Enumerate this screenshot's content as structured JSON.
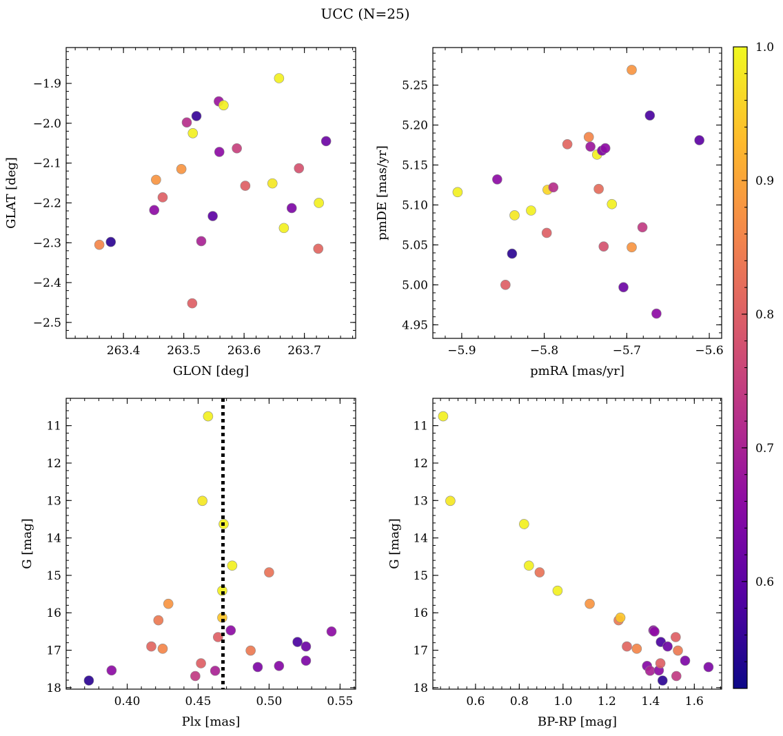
{
  "figure": {
    "title": "UCC (N=25)"
  },
  "colorbar": {
    "min": 0.52,
    "max": 1.0,
    "ticks": [
      0.6,
      0.7,
      0.8,
      0.9,
      1.0
    ],
    "tick_labels": [
      "0.6",
      "0.7",
      "0.8",
      "0.9",
      "1.0"
    ],
    "colormap": "plasma"
  },
  "chart_data": [
    {
      "type": "scatter",
      "xlabel": "GLON [deg]",
      "ylabel": "GLAT [deg]",
      "xlim": [
        263.305,
        263.785
      ],
      "ylim": [
        -2.54,
        -1.81
      ],
      "x_inverted": false,
      "y_inverted": false,
      "xticks": [
        263.4,
        263.5,
        263.6,
        263.7
      ],
      "xtick_labels": [
        "263.4",
        "263.5",
        "263.6",
        "263.7"
      ],
      "yticks": [
        -1.9,
        -2.0,
        -2.1,
        -2.2,
        -2.3,
        -2.4,
        -2.5
      ],
      "ytick_labels": [
        "−1.9",
        "−2.0",
        "−2.1",
        "−2.2",
        "−2.3",
        "−2.4",
        "−2.5"
      ],
      "points": [
        {
          "x": 263.379,
          "y": -2.298,
          "c": 0.55
        },
        {
          "x": 263.36,
          "y": -2.305,
          "c": 0.86
        },
        {
          "x": 263.454,
          "y": -2.142,
          "c": 0.88
        },
        {
          "x": 263.465,
          "y": -2.186,
          "c": 0.8
        },
        {
          "x": 263.451,
          "y": -2.218,
          "c": 0.66
        },
        {
          "x": 263.496,
          "y": -2.115,
          "c": 0.88
        },
        {
          "x": 263.505,
          "y": -1.998,
          "c": 0.72
        },
        {
          "x": 263.515,
          "y": -2.025,
          "c": 0.99
        },
        {
          "x": 263.521,
          "y": -1.982,
          "c": 0.56
        },
        {
          "x": 263.514,
          "y": -2.452,
          "c": 0.8
        },
        {
          "x": 263.529,
          "y": -2.296,
          "c": 0.7
        },
        {
          "x": 263.548,
          "y": -2.233,
          "c": 0.6
        },
        {
          "x": 263.558,
          "y": -1.945,
          "c": 0.68
        },
        {
          "x": 263.566,
          "y": -1.955,
          "c": 0.99
        },
        {
          "x": 263.559,
          "y": -2.072,
          "c": 0.66
        },
        {
          "x": 263.588,
          "y": -2.063,
          "c": 0.75
        },
        {
          "x": 263.602,
          "y": -2.157,
          "c": 0.8
        },
        {
          "x": 263.647,
          "y": -2.151,
          "c": 0.98
        },
        {
          "x": 263.658,
          "y": -1.887,
          "c": 0.99
        },
        {
          "x": 263.666,
          "y": -2.263,
          "c": 0.99
        },
        {
          "x": 263.679,
          "y": -2.213,
          "c": 0.64
        },
        {
          "x": 263.691,
          "y": -2.113,
          "c": 0.78
        },
        {
          "x": 263.723,
          "y": -2.315,
          "c": 0.81
        },
        {
          "x": 263.724,
          "y": -2.2,
          "c": 0.99
        },
        {
          "x": 263.736,
          "y": -2.045,
          "c": 0.62
        }
      ]
    },
    {
      "type": "scatter",
      "xlabel": "pmRA [mas/yr]",
      "ylabel": "pmDE [mas/yr]",
      "xlim": [
        -5.935,
        -5.585
      ],
      "ylim": [
        4.933,
        5.297
      ],
      "x_inverted": false,
      "y_inverted": false,
      "xticks": [
        -5.9,
        -5.8,
        -5.7,
        -5.6
      ],
      "xtick_labels": [
        "−5.9",
        "−5.8",
        "−5.7",
        "−5.6"
      ],
      "yticks": [
        4.95,
        5.0,
        5.05,
        5.1,
        5.15,
        5.2,
        5.25
      ],
      "ytick_labels": [
        "4.95",
        "5.00",
        "5.05",
        "5.10",
        "5.15",
        "5.20",
        "5.25"
      ],
      "points": [
        {
          "x": -5.905,
          "y": 5.116,
          "c": 0.99
        },
        {
          "x": -5.857,
          "y": 5.132,
          "c": 0.66
        },
        {
          "x": -5.847,
          "y": 5.0,
          "c": 0.8
        },
        {
          "x": -5.839,
          "y": 5.039,
          "c": 0.55
        },
        {
          "x": -5.836,
          "y": 5.087,
          "c": 0.98
        },
        {
          "x": -5.816,
          "y": 5.093,
          "c": 0.99
        },
        {
          "x": -5.797,
          "y": 5.065,
          "c": 0.8
        },
        {
          "x": -5.796,
          "y": 5.119,
          "c": 0.96
        },
        {
          "x": -5.789,
          "y": 5.122,
          "c": 0.72
        },
        {
          "x": -5.772,
          "y": 5.176,
          "c": 0.81
        },
        {
          "x": -5.746,
          "y": 5.185,
          "c": 0.86
        },
        {
          "x": -5.744,
          "y": 5.173,
          "c": 0.68
        },
        {
          "x": -5.736,
          "y": 5.163,
          "c": 0.99
        },
        {
          "x": -5.734,
          "y": 5.12,
          "c": 0.82
        },
        {
          "x": -5.73,
          "y": 5.168,
          "c": 0.64
        },
        {
          "x": -5.728,
          "y": 5.048,
          "c": 0.78
        },
        {
          "x": -5.726,
          "y": 5.171,
          "c": 0.66
        },
        {
          "x": -5.718,
          "y": 5.101,
          "c": 0.99
        },
        {
          "x": -5.704,
          "y": 4.997,
          "c": 0.62
        },
        {
          "x": -5.694,
          "y": 5.269,
          "c": 0.88
        },
        {
          "x": -5.694,
          "y": 5.047,
          "c": 0.88
        },
        {
          "x": -5.681,
          "y": 5.072,
          "c": 0.74
        },
        {
          "x": -5.672,
          "y": 5.212,
          "c": 0.58
        },
        {
          "x": -5.664,
          "y": 4.964,
          "c": 0.66
        },
        {
          "x": -5.612,
          "y": 5.181,
          "c": 0.6
        }
      ]
    },
    {
      "type": "scatter",
      "xlabel": "Plx [mas]",
      "ylabel": "G [mag]",
      "xlim": [
        0.357,
        0.561
      ],
      "ylim": [
        18.04,
        10.27
      ],
      "x_inverted": false,
      "y_inverted": true,
      "xticks": [
        0.4,
        0.45,
        0.5,
        0.55
      ],
      "xtick_labels": [
        "0.40",
        "0.45",
        "0.50",
        "0.55"
      ],
      "yticks": [
        11,
        12,
        13,
        14,
        15,
        16,
        17,
        18
      ],
      "ytick_labels": [
        "11",
        "12",
        "13",
        "14",
        "15",
        "16",
        "17",
        "18"
      ],
      "vline": {
        "x": 0.4675,
        "style": "dotted",
        "color": "#000000"
      },
      "points": [
        {
          "x": 0.373,
          "y": 17.81,
          "c": 0.55
        },
        {
          "x": 0.389,
          "y": 17.54,
          "c": 0.66
        },
        {
          "x": 0.417,
          "y": 16.9,
          "c": 0.81
        },
        {
          "x": 0.422,
          "y": 16.2,
          "c": 0.84
        },
        {
          "x": 0.425,
          "y": 16.96,
          "c": 0.86
        },
        {
          "x": 0.429,
          "y": 15.76,
          "c": 0.88
        },
        {
          "x": 0.448,
          "y": 17.69,
          "c": 0.74
        },
        {
          "x": 0.452,
          "y": 17.35,
          "c": 0.8
        },
        {
          "x": 0.453,
          "y": 13.01,
          "c": 0.98
        },
        {
          "x": 0.457,
          "y": 10.75,
          "c": 0.99
        },
        {
          "x": 0.462,
          "y": 17.55,
          "c": 0.7
        },
        {
          "x": 0.464,
          "y": 16.65,
          "c": 0.8
        },
        {
          "x": 0.467,
          "y": 16.13,
          "c": 0.94
        },
        {
          "x": 0.467,
          "y": 15.41,
          "c": 0.99
        },
        {
          "x": 0.468,
          "y": 13.63,
          "c": 0.99
        },
        {
          "x": 0.473,
          "y": 16.47,
          "c": 0.66
        },
        {
          "x": 0.474,
          "y": 14.74,
          "c": 0.99
        },
        {
          "x": 0.487,
          "y": 17.01,
          "c": 0.84
        },
        {
          "x": 0.492,
          "y": 17.45,
          "c": 0.64
        },
        {
          "x": 0.5,
          "y": 14.92,
          "c": 0.83
        },
        {
          "x": 0.507,
          "y": 17.42,
          "c": 0.65
        },
        {
          "x": 0.52,
          "y": 16.78,
          "c": 0.58
        },
        {
          "x": 0.526,
          "y": 16.9,
          "c": 0.62
        },
        {
          "x": 0.526,
          "y": 17.28,
          "c": 0.64
        },
        {
          "x": 0.544,
          "y": 16.5,
          "c": 0.66
        }
      ]
    },
    {
      "type": "scatter",
      "xlabel": "BP-RP [mag]",
      "ylabel": "G [mag]",
      "xlim": [
        0.405,
        1.725
      ],
      "ylim": [
        18.04,
        10.27
      ],
      "x_inverted": false,
      "y_inverted": true,
      "xticks": [
        0.4,
        0.6,
        0.8,
        1.0,
        1.2,
        1.4,
        1.6
      ],
      "xtick_labels": [
        "0.4",
        "0.6",
        "0.8",
        "1.0",
        "1.2",
        "1.4",
        "1.6"
      ],
      "yticks": [
        11,
        12,
        13,
        14,
        15,
        16,
        17,
        18
      ],
      "ytick_labels": [
        "11",
        "12",
        "13",
        "14",
        "15",
        "16",
        "17",
        "18"
      ],
      "points": [
        {
          "x": 0.452,
          "y": 10.75,
          "c": 0.99
        },
        {
          "x": 0.485,
          "y": 13.01,
          "c": 0.98
        },
        {
          "x": 0.822,
          "y": 13.63,
          "c": 0.99
        },
        {
          "x": 0.844,
          "y": 14.74,
          "c": 0.99
        },
        {
          "x": 0.893,
          "y": 14.92,
          "c": 0.83
        },
        {
          "x": 0.975,
          "y": 15.41,
          "c": 0.99
        },
        {
          "x": 1.122,
          "y": 15.76,
          "c": 0.88
        },
        {
          "x": 1.254,
          "y": 16.2,
          "c": 0.84
        },
        {
          "x": 1.262,
          "y": 16.13,
          "c": 0.94
        },
        {
          "x": 1.292,
          "y": 16.9,
          "c": 0.81
        },
        {
          "x": 1.337,
          "y": 16.96,
          "c": 0.86
        },
        {
          "x": 1.384,
          "y": 17.42,
          "c": 0.65
        },
        {
          "x": 1.398,
          "y": 17.55,
          "c": 0.7
        },
        {
          "x": 1.413,
          "y": 16.47,
          "c": 0.66
        },
        {
          "x": 1.418,
          "y": 16.5,
          "c": 0.66
        },
        {
          "x": 1.438,
          "y": 17.54,
          "c": 0.66
        },
        {
          "x": 1.445,
          "y": 17.35,
          "c": 0.8
        },
        {
          "x": 1.447,
          "y": 16.78,
          "c": 0.58
        },
        {
          "x": 1.455,
          "y": 17.81,
          "c": 0.55
        },
        {
          "x": 1.478,
          "y": 16.9,
          "c": 0.62
        },
        {
          "x": 1.515,
          "y": 16.65,
          "c": 0.8
        },
        {
          "x": 1.518,
          "y": 17.69,
          "c": 0.74
        },
        {
          "x": 1.525,
          "y": 17.01,
          "c": 0.84
        },
        {
          "x": 1.558,
          "y": 17.28,
          "c": 0.64
        },
        {
          "x": 1.665,
          "y": 17.45,
          "c": 0.64
        }
      ]
    }
  ]
}
